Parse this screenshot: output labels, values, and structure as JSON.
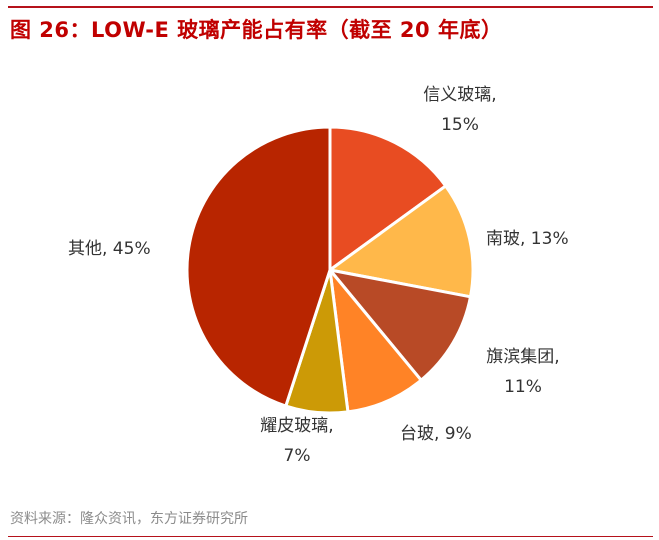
{
  "figure": {
    "title": "图 26：LOW-E 玻璃产能占有率（截至 20 年底）",
    "source": "资料来源：隆众资讯，东方证券研究所"
  },
  "colors": {
    "rule": "#b5121b",
    "title": "#c00000"
  },
  "chart_data": {
    "type": "pie",
    "title": "LOW-E 玻璃产能占有率（截至 20 年底）",
    "categories": [
      "信义玻璃",
      "南玻",
      "旗滨集团",
      "台玻",
      "耀皮玻璃",
      "其他"
    ],
    "values": [
      15,
      13,
      11,
      9,
      7,
      45
    ],
    "unit": "%",
    "colors": [
      "#e84c22",
      "#ffb84a",
      "#b84a26",
      "#ff8326",
      "#cc9a06",
      "#b82500"
    ],
    "labels": [
      {
        "name": "信义玻璃,",
        "pct": "15%"
      },
      {
        "name": "南玻, 13%",
        "pct": ""
      },
      {
        "name": "旗滨集团,",
        "pct": "11%"
      },
      {
        "name": "台玻, 9%",
        "pct": ""
      },
      {
        "name": "耀皮玻璃,",
        "pct": "7%"
      },
      {
        "name": "其他, 45%",
        "pct": ""
      }
    ],
    "start_angle_deg": 0,
    "direction": "clockwise",
    "legend": "none (data labels)"
  }
}
